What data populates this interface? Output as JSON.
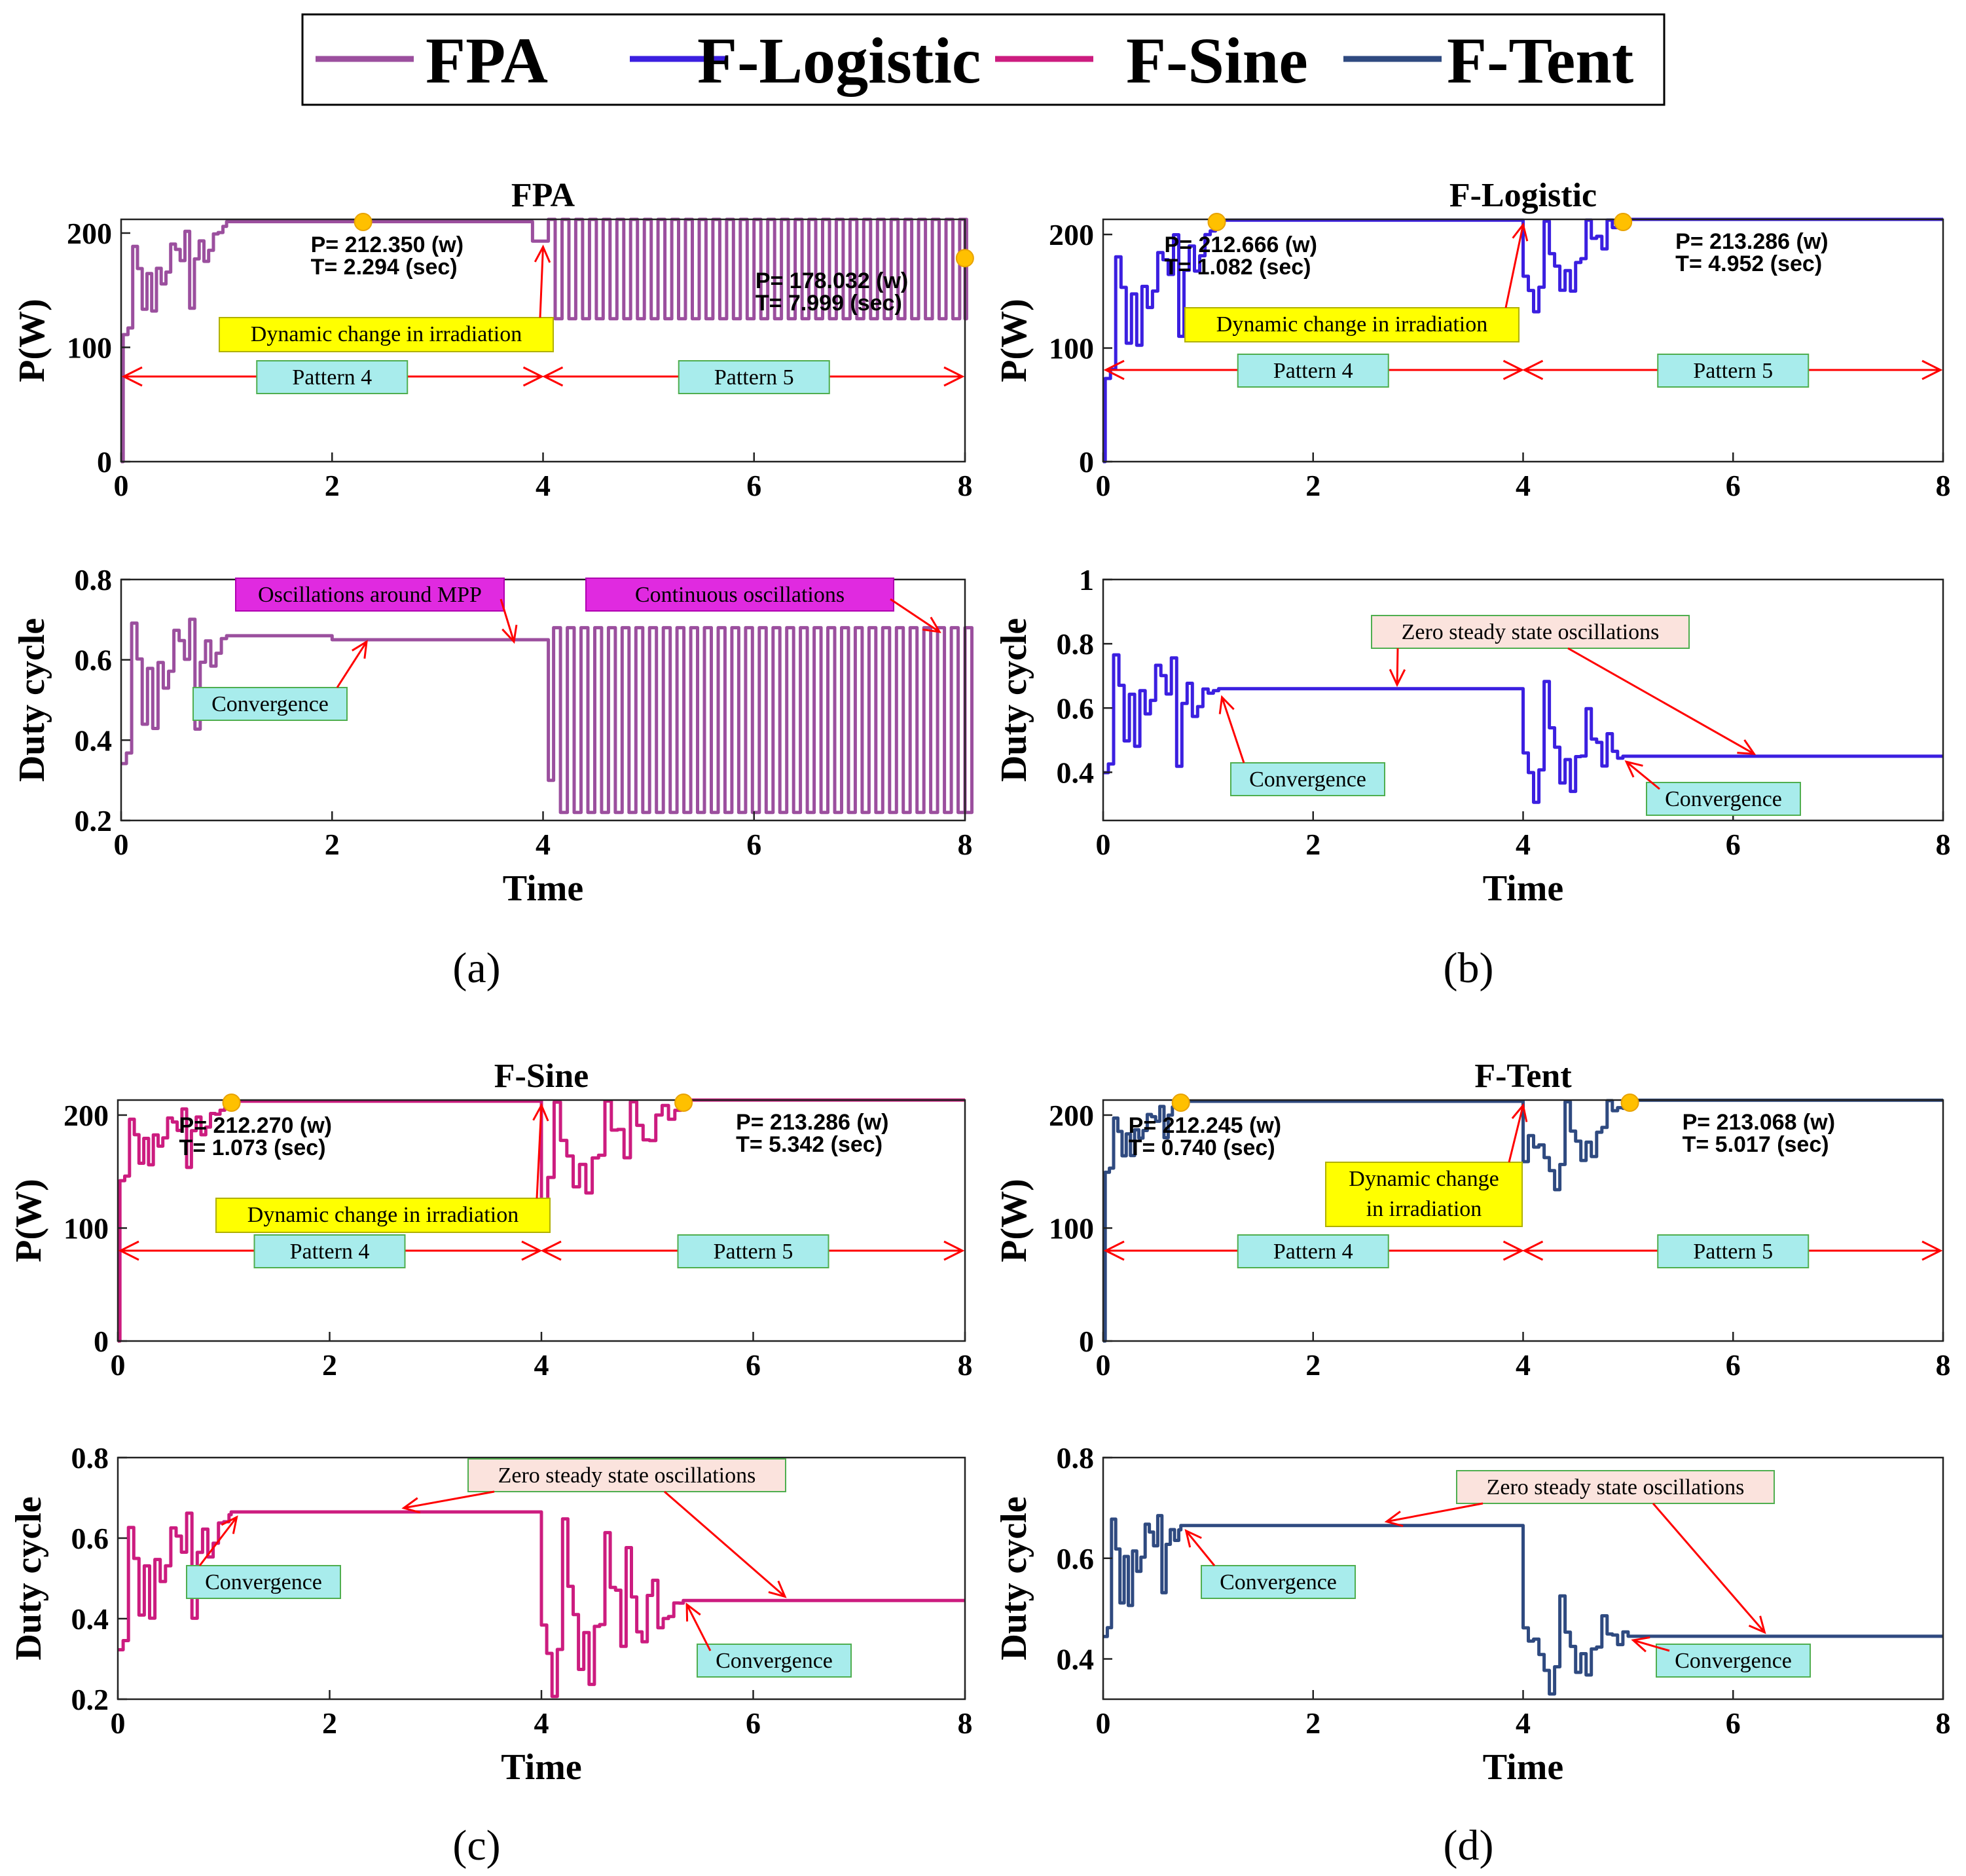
{
  "legend": {
    "items": [
      {
        "label": "FPA",
        "color": "#9b4f9e"
      },
      {
        "label": "F-Logistic",
        "color": "#3b1fe0"
      },
      {
        "label": "F-Sine",
        "color": "#cc1c7f"
      },
      {
        "label": "F-Tent",
        "color": "#2f4a80"
      }
    ]
  },
  "colors": {
    "annotation_arrow": "#ff0000",
    "pattern_box_fill": "#a8ecec",
    "pattern_box_stroke": "#4fae4f",
    "yellow_box_fill": "#ffff00",
    "magenta_box_fill": "#e02ae0",
    "pink_box_fill": "#fbe3dd",
    "marker_fill": "#ffc000",
    "marker_stroke": "#e8a200"
  },
  "chart_data": [
    {
      "id": "a",
      "caption": "(a)",
      "algorithm": "FPA",
      "color": "#9b4f9e",
      "power": {
        "type": "line",
        "title": "FPA",
        "xlabel": "",
        "ylabel": "P(W)",
        "xlim": [
          0,
          8
        ],
        "ylim": [
          0,
          212
        ],
        "xticks": [
          "0",
          "2",
          "4",
          "6",
          "8"
        ],
        "yticks": [
          "0",
          "100",
          "200"
        ],
        "converged": [
          {
            "label_p": "P= 212.350 (w)",
            "label_t": "T=  2.294 (sec)",
            "t": 2.294,
            "p": 212.35
          },
          {
            "label_p": "P= 178.032 (w)",
            "label_t": "T=  7.999 (sec)",
            "t": 7.999,
            "p": 178.032
          }
        ],
        "yellow_note": "Dynamic change in irradiation",
        "patterns": [
          "Pattern 4",
          "Pattern 5"
        ]
      },
      "duty": {
        "type": "line",
        "xlabel": "Time",
        "ylabel": "Duty cycle",
        "xlim": [
          0,
          8
        ],
        "ylim": [
          0.2,
          0.8
        ],
        "xticks": [
          "0",
          "2",
          "4",
          "6",
          "8"
        ],
        "yticks": [
          "0.2",
          "0.4",
          "0.6",
          "0.8"
        ],
        "notes": [
          "Oscillations around MPP",
          "Continuous oscillations",
          "Convergence"
        ]
      }
    },
    {
      "id": "b",
      "caption": "(b)",
      "algorithm": "F-Logistic",
      "color": "#3b1fe0",
      "power": {
        "type": "line",
        "title": "F-Logistic",
        "xlabel": "",
        "ylabel": "P(W)",
        "xlim": [
          0,
          8
        ],
        "ylim": [
          0,
          213.3
        ],
        "xticks": [
          "0",
          "2",
          "4",
          "6",
          "8"
        ],
        "yticks": [
          "0",
          "100",
          "200"
        ],
        "converged": [
          {
            "label_p": "P= 212.666 (w)",
            "label_t": "T=  1.082 (sec)",
            "t": 1.082,
            "p": 212.666
          },
          {
            "label_p": "P= 213.286 (w)",
            "label_t": "T=  4.952 (sec)",
            "t": 4.952,
            "p": 213.286
          }
        ],
        "yellow_note": "Dynamic change in irradiation",
        "patterns": [
          "Pattern 4",
          "Pattern 5"
        ]
      },
      "duty": {
        "type": "line",
        "xlabel": "Time",
        "ylabel": "Duty cycle",
        "xlim": [
          0,
          8
        ],
        "ylim": [
          0.25,
          1.0
        ],
        "xticks": [
          "0",
          "2",
          "4",
          "6",
          "8"
        ],
        "yticks": [
          "0.4",
          "0.6",
          "0.8",
          "1"
        ],
        "notes": [
          "Zero steady state oscillations",
          "Convergence",
          "Convergence"
        ]
      }
    },
    {
      "id": "c",
      "caption": "(c)",
      "algorithm": "F-Sine",
      "color": "#cc1c7f",
      "power": {
        "type": "line",
        "title": "F-Sine",
        "xlabel": "",
        "ylabel": "P(W)",
        "xlim": [
          0,
          8
        ],
        "ylim": [
          0,
          213.3
        ],
        "xticks": [
          "0",
          "2",
          "4",
          "6",
          "8"
        ],
        "yticks": [
          "0",
          "100",
          "200"
        ],
        "converged": [
          {
            "label_p": "P= 212.270 (w)",
            "label_t": "T=  1.073 (sec)",
            "t": 1.073,
            "p": 212.27
          },
          {
            "label_p": "P= 213.286 (w)",
            "label_t": "T=  5.342 (sec)",
            "t": 5.342,
            "p": 213.286
          }
        ],
        "yellow_note": "Dynamic change in irradiation",
        "patterns": [
          "Pattern 4",
          "Pattern 5"
        ]
      },
      "duty": {
        "type": "line",
        "xlabel": "Time",
        "ylabel": "Duty cycle",
        "xlim": [
          0,
          8
        ],
        "ylim": [
          0.2,
          0.8
        ],
        "xticks": [
          "0",
          "2",
          "4",
          "6",
          "8"
        ],
        "yticks": [
          "0.2",
          "0.4",
          "0.6",
          "0.8"
        ],
        "notes": [
          "Zero steady state oscillations",
          "Convergence",
          "Convergence"
        ]
      }
    },
    {
      "id": "d",
      "caption": "(d)",
      "algorithm": "F-Tent",
      "color": "#2f4a80",
      "power": {
        "type": "line",
        "title": "F-Tent",
        "xlabel": "",
        "ylabel": "P(W)",
        "xlim": [
          0,
          8
        ],
        "ylim": [
          0,
          213.3
        ],
        "xticks": [
          "0",
          "2",
          "4",
          "6",
          "8"
        ],
        "yticks": [
          "0",
          "100",
          "200"
        ],
        "converged": [
          {
            "label_p": "P= 212.245 (w)",
            "label_t": "T=  0.740 (sec)",
            "t": 0.74,
            "p": 212.245
          },
          {
            "label_p": "P= 213.068 (w)",
            "label_t": "T=  5.017 (sec)",
            "t": 5.017,
            "p": 213.068
          }
        ],
        "yellow_note": "Dynamic change\nin irradiation",
        "patterns": [
          "Pattern 4",
          "Pattern 5"
        ]
      },
      "duty": {
        "type": "line",
        "xlabel": "Time",
        "ylabel": "Duty cycle",
        "xlim": [
          0,
          8
        ],
        "ylim": [
          0.32,
          0.8
        ],
        "xticks": [
          "0",
          "2",
          "4",
          "6",
          "8"
        ],
        "yticks": [
          "0.4",
          "0.6",
          "0.8"
        ],
        "notes": [
          "Zero steady state oscillations",
          "Convergence",
          "Convergence"
        ]
      }
    }
  ]
}
